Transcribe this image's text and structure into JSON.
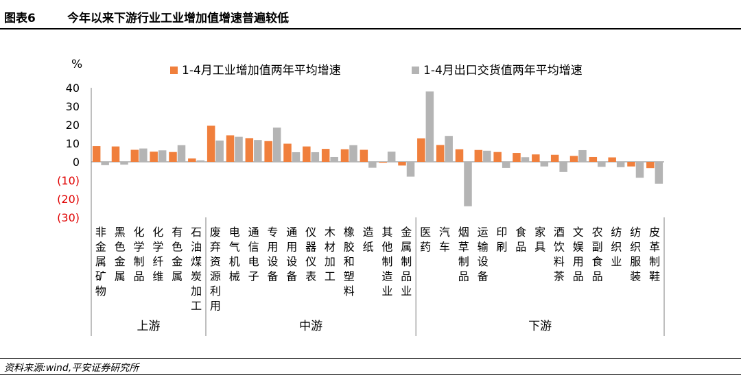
{
  "figure": {
    "label": "图表6",
    "title": "今年以来下游行业工业增加值增速普遍较低",
    "source": "资料来源:wind,平安证券研究所"
  },
  "chart_data": {
    "type": "bar",
    "title": "今年以来下游行业工业增加值增速普遍较低",
    "ylabel": "%",
    "ylim": [
      -30,
      40
    ],
    "yticks": [
      40,
      30,
      20,
      10,
      0,
      -10,
      -20,
      -30
    ],
    "ytick_labels": [
      "40",
      "30",
      "20",
      "10",
      "0",
      "(10)",
      "(20)",
      "(30)"
    ],
    "colors": {
      "series1": "#f07f3c",
      "series2": "#b4b4b4",
      "negative_tick": "#e00000",
      "axis": "#7f7f7f"
    },
    "categories": [
      "非金属矿物",
      "黑色金属",
      "化学制品",
      "化学纤维",
      "有色金属",
      "石油煤炭加工",
      "废弃资源利用",
      "电气机械",
      "通信电子",
      "专用设备",
      "通用设备",
      "仪器仪表",
      "木材加工",
      "橡胶和塑料",
      "造纸",
      "其他制造业",
      "金属制品业",
      "医药",
      "汽车",
      "烟草制品",
      "运输设备",
      "印刷",
      "食品",
      "家具",
      "酒饮料茶",
      "文娱用品",
      "农副食品",
      "纺织业",
      "纺织服装",
      "皮革制鞋"
    ],
    "series": [
      {
        "name": "1-4月工业增加值两年平均增速",
        "values": [
          8.5,
          8.3,
          6.5,
          5.5,
          5.3,
          1.8,
          19.5,
          14.3,
          12.8,
          11.2,
          9.8,
          8.3,
          7.0,
          6.8,
          6.5,
          -0.5,
          -2.0,
          12.7,
          9.1,
          6.8,
          6.4,
          5.3,
          4.8,
          4.0,
          3.8,
          3.2,
          2.6,
          2.4,
          -2.5,
          -3.4
        ]
      },
      {
        "name": "1-4月出口交货值两年平均增速",
        "values": [
          -1.8,
          -1.5,
          7.2,
          6.2,
          9.0,
          0.8,
          11.5,
          13.5,
          11.8,
          18.5,
          5.2,
          5.2,
          2.6,
          9.0,
          -3.2,
          5.5,
          -8.0,
          38.0,
          14.0,
          -24.0,
          6.0,
          -3.3,
          2.5,
          -2.5,
          -5.5,
          6.3,
          -2.7,
          -2.9,
          -8.6,
          -11.8
        ]
      }
    ],
    "groups": [
      {
        "name": "上游",
        "count": 6
      },
      {
        "name": "中游",
        "count": 11
      },
      {
        "name": "下游",
        "count": 13
      }
    ]
  }
}
